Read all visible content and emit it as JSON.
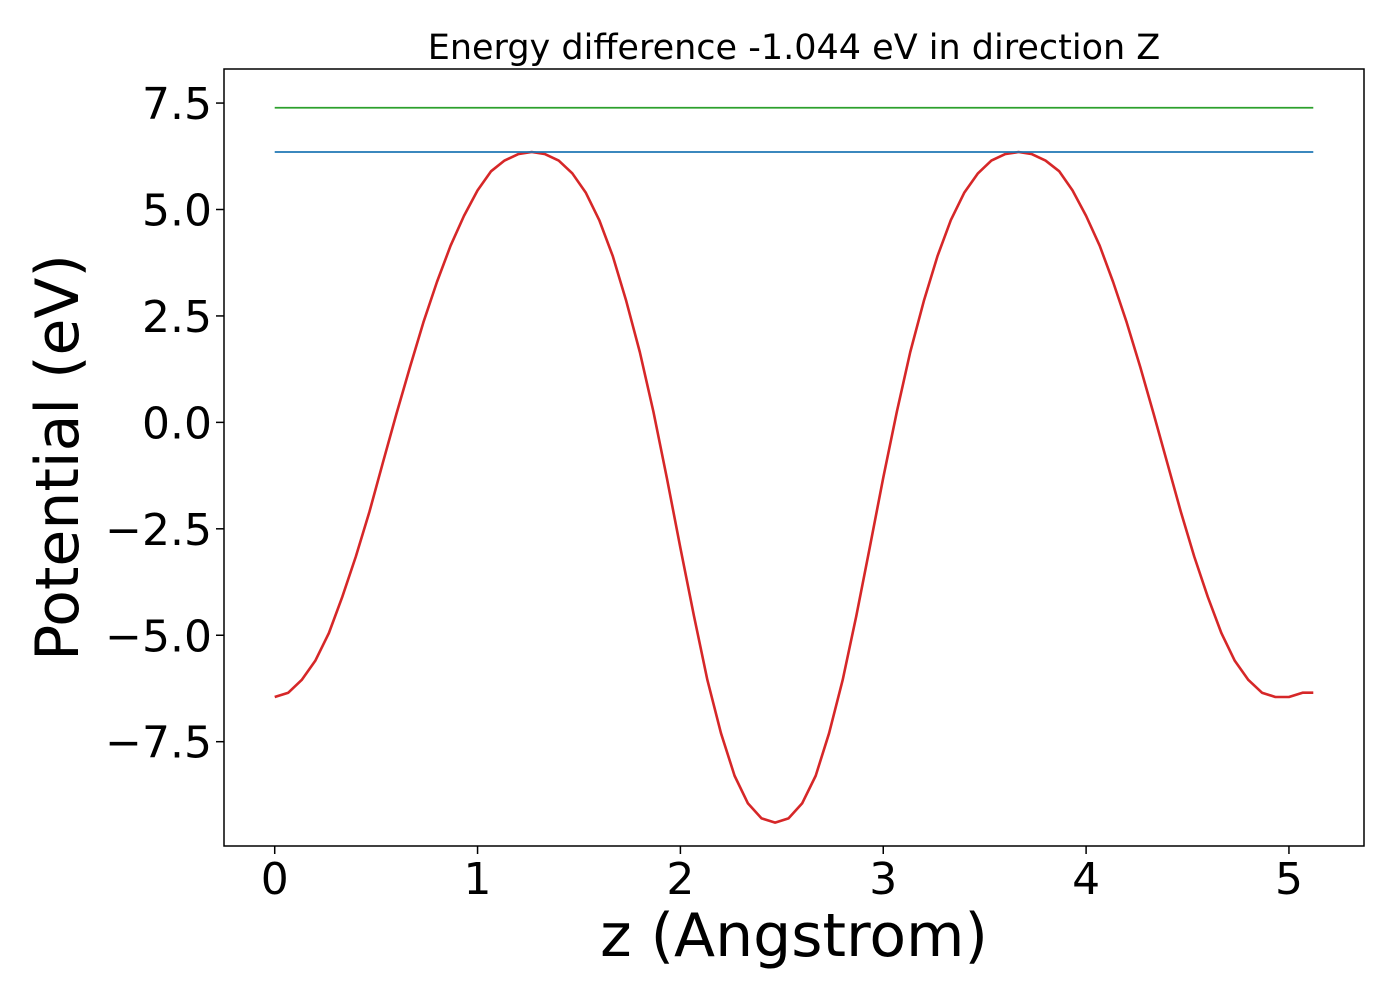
{
  "chart_data": {
    "type": "line",
    "title": "Energy difference -1.044 eV in direction Z",
    "xlabel": "z (Angstrom)",
    "ylabel": "Potential (eV)",
    "xlim": [
      -0.25,
      5.37
    ],
    "ylim": [
      -9.95,
      8.3
    ],
    "x_ticks": [
      0,
      1,
      2,
      3,
      4,
      5
    ],
    "x_tick_labels": [
      "0",
      "1",
      "2",
      "3",
      "4",
      "5"
    ],
    "y_ticks": [
      -7.5,
      -5.0,
      -2.5,
      0.0,
      2.5,
      5.0,
      7.5
    ],
    "y_tick_labels": [
      "−7.5",
      "−5.0",
      "−2.5",
      "0.0",
      "2.5",
      "5.0",
      "7.5"
    ],
    "grid": false,
    "series": [
      {
        "color": "#d62728",
        "x": [
          0.0,
          0.067,
          0.133,
          0.2,
          0.267,
          0.333,
          0.4,
          0.467,
          0.533,
          0.6,
          0.667,
          0.733,
          0.8,
          0.867,
          0.933,
          1.0,
          1.067,
          1.133,
          1.2,
          1.267,
          1.333,
          1.4,
          1.467,
          1.533,
          1.6,
          1.667,
          1.733,
          1.8,
          1.867,
          1.933,
          2.0,
          2.067,
          2.133,
          2.2,
          2.267,
          2.333,
          2.4,
          2.467,
          2.533,
          2.6,
          2.667,
          2.733,
          2.8,
          2.867,
          2.933,
          3.0,
          3.067,
          3.133,
          3.2,
          3.267,
          3.333,
          3.4,
          3.467,
          3.533,
          3.6,
          3.667,
          3.733,
          3.8,
          3.867,
          3.933,
          4.0,
          4.067,
          4.133,
          4.2,
          4.267,
          4.333,
          4.4,
          4.467,
          4.533,
          4.6,
          4.667,
          4.733,
          4.8,
          4.867,
          4.933,
          5.0,
          5.067,
          5.12
        ],
        "y": [
          -6.45,
          -6.35,
          -6.05,
          -5.6,
          -4.95,
          -4.1,
          -3.15,
          -2.1,
          -0.95,
          0.2,
          1.3,
          2.35,
          3.3,
          4.15,
          4.85,
          5.45,
          5.9,
          6.15,
          6.3,
          6.35,
          6.3,
          6.15,
          5.85,
          5.4,
          4.75,
          3.9,
          2.85,
          1.65,
          0.25,
          -1.3,
          -2.95,
          -4.55,
          -6.05,
          -7.3,
          -8.3,
          -8.95,
          -9.3,
          -9.4,
          -9.3,
          -8.95,
          -8.3,
          -7.3,
          -6.05,
          -4.55,
          -2.95,
          -1.3,
          0.25,
          1.65,
          2.85,
          3.9,
          4.75,
          5.4,
          5.85,
          6.15,
          6.3,
          6.35,
          6.3,
          6.15,
          5.9,
          5.45,
          4.85,
          4.15,
          3.3,
          2.35,
          1.3,
          0.2,
          -0.95,
          -2.1,
          -3.15,
          -4.1,
          -4.95,
          -5.6,
          -6.05,
          -6.35,
          -6.45,
          -6.45,
          -6.35,
          -6.35
        ]
      },
      {
        "color": "#1f77b4",
        "x": [
          0.0,
          5.12
        ],
        "y": [
          6.35,
          6.35
        ]
      },
      {
        "color": "#2ca02c",
        "x": [
          0.0,
          5.12
        ],
        "y": [
          7.39,
          7.39
        ]
      }
    ]
  }
}
